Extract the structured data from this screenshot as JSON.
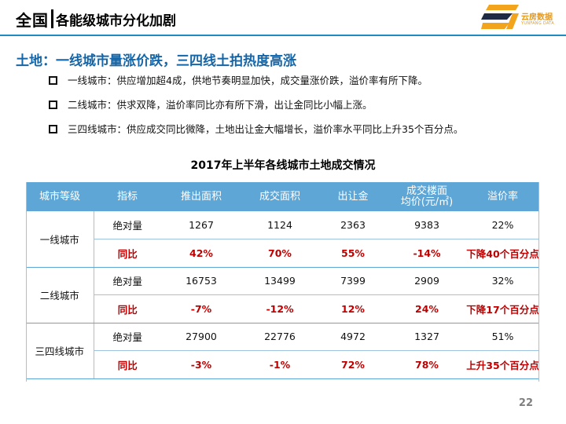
{
  "header": {
    "title_main": "全国",
    "title_sub": "各能级城市分化加剧"
  },
  "logo": {
    "name_cn": "云房数据",
    "name_en": "YUNFANG DATA",
    "colors": {
      "orange": "#f2a51c",
      "dark": "#1f2a44"
    }
  },
  "section": {
    "heading": "土地：一线城市量涨价跌，三四线土拍热度高涨",
    "bullets": [
      "一线城市：供应增加超4成，供地节奏明显加快，成交量涨价跌，溢价率有所下降。",
      "二线城市：供求双降，溢价率同比亦有所下滑，出让金同比小幅上涨。",
      "三四线城市：供应成交同比微降，土地出让金大幅增长，溢价率水平同比上升35个百分点。"
    ]
  },
  "table": {
    "title": "2017年上半年各线城市土地成交情况",
    "headers": [
      "城市等级",
      "指标",
      "推出面积",
      "成交面积",
      "出让金",
      "成交楼面均价(元/㎡)",
      "溢价率"
    ],
    "header_last_price_line1": "成交楼面",
    "header_last_price_line2": "均价(元/㎡)",
    "groups": [
      {
        "city": "一线城市",
        "abs": {
          "label": "绝对量",
          "values": [
            "1267",
            "1124",
            "2363",
            "9383",
            "22%"
          ]
        },
        "yoy": {
          "label": "同比",
          "values": [
            "42%",
            "70%",
            "55%",
            "-14%",
            "下降40个百分点"
          ]
        }
      },
      {
        "city": "二线城市",
        "abs": {
          "label": "绝对量",
          "values": [
            "16753",
            "13499",
            "7399",
            "2909",
            "32%"
          ]
        },
        "yoy": {
          "label": "同比",
          "values": [
            "-7%",
            "-12%",
            "12%",
            "24%",
            "下降17个百分点"
          ]
        }
      },
      {
        "city": "三四线城市",
        "abs": {
          "label": "绝对量",
          "values": [
            "27900",
            "22776",
            "4972",
            "1327",
            "51%"
          ]
        },
        "yoy": {
          "label": "同比",
          "values": [
            "-3%",
            "-1%",
            "72%",
            "78%",
            "上升35个百分点"
          ]
        }
      }
    ]
  },
  "colors": {
    "accent_blue": "#1e8bc3",
    "heading_blue": "#1566a8",
    "header_fill": "#5ea6d6",
    "yoy_red": "#c00000"
  },
  "page_number": "22"
}
